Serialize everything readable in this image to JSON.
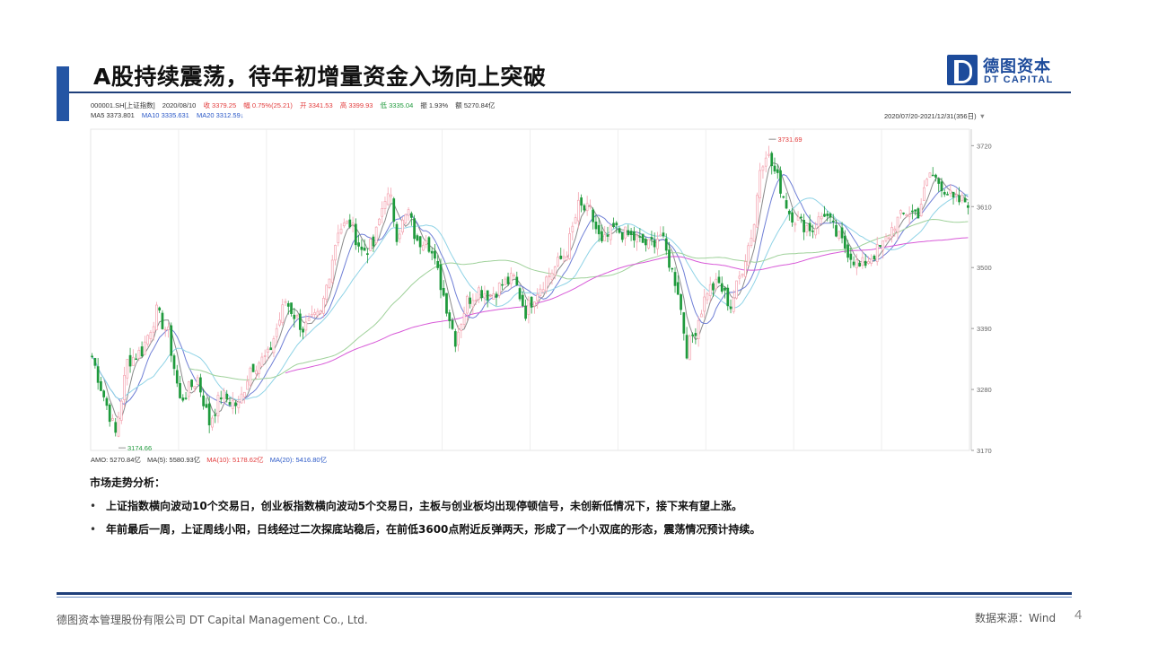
{
  "slide": {
    "title": "A股持续震荡，待年初增量资金入场向上突破",
    "page_number": "4"
  },
  "logo": {
    "cn": "德图资本",
    "en": "DT CAPITAL"
  },
  "quote": {
    "code": "000001.SH[上证指数]",
    "date": "2020/08/10",
    "close": "收 3379.25",
    "change": "幅 0.75%(25.21)",
    "open": "开 3341.53",
    "high": "高 3399.93",
    "low": "低 3335.04",
    "amplitude": "振 1.93%",
    "amount": "额 5270.84亿"
  },
  "ma_line": {
    "ma5": "MA5 3373.801",
    "ma10": "MA10 3335.631",
    "ma20": "MA20 3312.59↓"
  },
  "date_range": "2020/07/20-2021/12/31(356日)",
  "amo_line": {
    "amo": "AMO: 5270.84亿",
    "ma5": "MA(5): 5580.93亿",
    "ma10": "MA(10): 5178.62亿",
    "ma20": "MA(20): 5416.80亿"
  },
  "colors": {
    "accent": "#2455a4",
    "up": "#f4a3b0",
    "down": "#1f9a3c",
    "ma5": "#8a8a8a",
    "ma10": "#6f7fd6",
    "ma20": "#8fd3e6",
    "ma60": "#9fd19a",
    "ma120": "#d85ad8"
  },
  "chart_data": {
    "type": "candlestick",
    "ylim": [
      3170,
      3740
    ],
    "yticks": [
      3170,
      3280,
      3390,
      3500,
      3610,
      3720
    ],
    "annotations": [
      {
        "label": "3731.69",
        "value": 3731.69,
        "type": "high"
      },
      {
        "label": "3174.66",
        "value": 3174.66,
        "type": "low"
      }
    ],
    "anchors": [
      {
        "i": 0,
        "v": 3340
      },
      {
        "i": 3,
        "v": 3285
      },
      {
        "i": 8,
        "v": 3200
      },
      {
        "i": 12,
        "v": 3330
      },
      {
        "i": 17,
        "v": 3350
      },
      {
        "i": 22,
        "v": 3420
      },
      {
        "i": 26,
        "v": 3380
      },
      {
        "i": 30,
        "v": 3260
      },
      {
        "i": 36,
        "v": 3300
      },
      {
        "i": 40,
        "v": 3220
      },
      {
        "i": 44,
        "v": 3270
      },
      {
        "i": 50,
        "v": 3250
      },
      {
        "i": 54,
        "v": 3320
      },
      {
        "i": 60,
        "v": 3340
      },
      {
        "i": 66,
        "v": 3440
      },
      {
        "i": 72,
        "v": 3390
      },
      {
        "i": 78,
        "v": 3415
      },
      {
        "i": 84,
        "v": 3570
      },
      {
        "i": 88,
        "v": 3580
      },
      {
        "i": 92,
        "v": 3530
      },
      {
        "i": 96,
        "v": 3540
      },
      {
        "i": 100,
        "v": 3630
      },
      {
        "i": 102,
        "v": 3620
      },
      {
        "i": 104,
        "v": 3560
      },
      {
        "i": 108,
        "v": 3600
      },
      {
        "i": 111,
        "v": 3540
      },
      {
        "i": 114,
        "v": 3560
      },
      {
        "i": 118,
        "v": 3490
      },
      {
        "i": 122,
        "v": 3410
      },
      {
        "i": 124,
        "v": 3370
      },
      {
        "i": 128,
        "v": 3440
      },
      {
        "i": 132,
        "v": 3460
      },
      {
        "i": 136,
        "v": 3450
      },
      {
        "i": 140,
        "v": 3470
      },
      {
        "i": 144,
        "v": 3480
      },
      {
        "i": 148,
        "v": 3420
      },
      {
        "i": 152,
        "v": 3460
      },
      {
        "i": 158,
        "v": 3500
      },
      {
        "i": 162,
        "v": 3530
      },
      {
        "i": 166,
        "v": 3610
      },
      {
        "i": 170,
        "v": 3600
      },
      {
        "i": 174,
        "v": 3540
      },
      {
        "i": 178,
        "v": 3570
      },
      {
        "i": 182,
        "v": 3560
      },
      {
        "i": 186,
        "v": 3550
      },
      {
        "i": 190,
        "v": 3540
      },
      {
        "i": 194,
        "v": 3560
      },
      {
        "i": 200,
        "v": 3460
      },
      {
        "i": 203,
        "v": 3350
      },
      {
        "i": 206,
        "v": 3390
      },
      {
        "i": 210,
        "v": 3460
      },
      {
        "i": 214,
        "v": 3470
      },
      {
        "i": 218,
        "v": 3430
      },
      {
        "i": 222,
        "v": 3500
      },
      {
        "i": 226,
        "v": 3580
      },
      {
        "i": 228,
        "v": 3680
      },
      {
        "i": 230,
        "v": 3710
      },
      {
        "i": 234,
        "v": 3660
      },
      {
        "i": 238,
        "v": 3600
      },
      {
        "i": 242,
        "v": 3580
      },
      {
        "i": 246,
        "v": 3570
      },
      {
        "i": 250,
        "v": 3600
      },
      {
        "i": 254,
        "v": 3560
      },
      {
        "i": 258,
        "v": 3530
      },
      {
        "i": 262,
        "v": 3500
      },
      {
        "i": 266,
        "v": 3520
      },
      {
        "i": 270,
        "v": 3540
      },
      {
        "i": 274,
        "v": 3580
      },
      {
        "i": 278,
        "v": 3600
      },
      {
        "i": 282,
        "v": 3600
      },
      {
        "i": 286,
        "v": 3670
      },
      {
        "i": 290,
        "v": 3650
      },
      {
        "i": 294,
        "v": 3620
      },
      {
        "i": 298,
        "v": 3620
      }
    ],
    "count": 300,
    "series": [
      {
        "key": "ma5",
        "window": 5
      },
      {
        "key": "ma10",
        "window": 10
      },
      {
        "key": "ma20",
        "window": 20
      },
      {
        "key": "ma60",
        "window": 60
      },
      {
        "key": "ma120",
        "window": 120
      }
    ]
  },
  "analysis": {
    "heading": "市场走势分析：",
    "bullets": [
      "上证指数横向波动10个交易日，创业板指数横向波动5个交易日，主板与创业板均出现停顿信号，未创新低情况下，接下来有望上涨。",
      "年前最后一周，上证周线小阳，日线经过二次探底站稳后，在前低3600点附近反弹两天，形成了一个小双底的形态，震荡情况预计持续。"
    ]
  },
  "footer": {
    "company": "德图资本管理股份有限公司 DT Capital Management Co., Ltd.",
    "source": "数据来源：Wind"
  }
}
